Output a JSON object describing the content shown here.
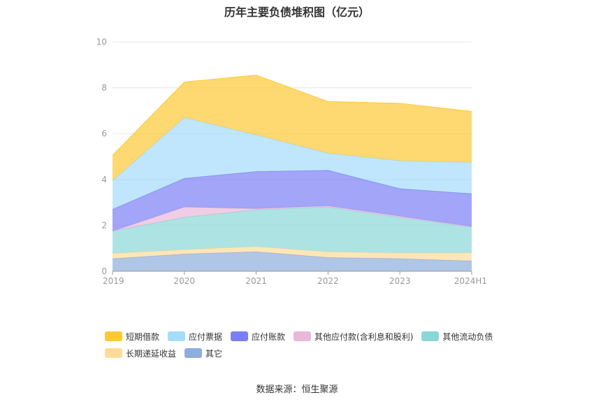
{
  "chart_data": {
    "type": "area",
    "stacked": true,
    "title": "历年主要负债堆积图（亿元）",
    "categories": [
      "2019",
      "2020",
      "2021",
      "2022",
      "2023",
      "2024H1"
    ],
    "y_ticks": [
      "0",
      "2",
      "4",
      "6",
      "8",
      "10"
    ],
    "ylim": [
      0,
      10
    ],
    "grid": true,
    "legend_position": "bottom",
    "series": [
      {
        "name": "其它",
        "color": "#8eaedd",
        "values": [
          0.55,
          0.75,
          0.85,
          0.6,
          0.55,
          0.45
        ]
      },
      {
        "name": "长期递延收益",
        "color": "#fedb9b",
        "values": [
          0.23,
          0.2,
          0.23,
          0.25,
          0.25,
          0.35
        ]
      },
      {
        "name": "其他流动负债",
        "color": "#8bd7d8",
        "values": [
          0.97,
          1.4,
          1.6,
          1.95,
          1.55,
          1.12
        ]
      },
      {
        "name": "其他应付款(含利息和股利)",
        "color": "#e9b8da",
        "values": [
          0.0,
          0.45,
          0.05,
          0.05,
          0.05,
          0.03
        ]
      },
      {
        "name": "应付账款",
        "color": "#7b7ff5",
        "values": [
          0.95,
          1.25,
          1.62,
          1.55,
          1.2,
          1.43
        ]
      },
      {
        "name": "应付票据",
        "color": "#a5dcfc",
        "values": [
          1.25,
          2.65,
          1.6,
          0.75,
          1.22,
          1.37
        ]
      },
      {
        "name": "短期借款",
        "color": "#fec934",
        "values": [
          1.1,
          1.55,
          2.6,
          2.25,
          2.5,
          2.22
        ]
      }
    ],
    "legend_order": [
      "短期借款",
      "应付票据",
      "应付账款",
      "其他应付款(含利息和股利)",
      "其他流动负债",
      "长期递延收益",
      "其它"
    ]
  },
  "source_text": "数据来源：恒生聚源"
}
